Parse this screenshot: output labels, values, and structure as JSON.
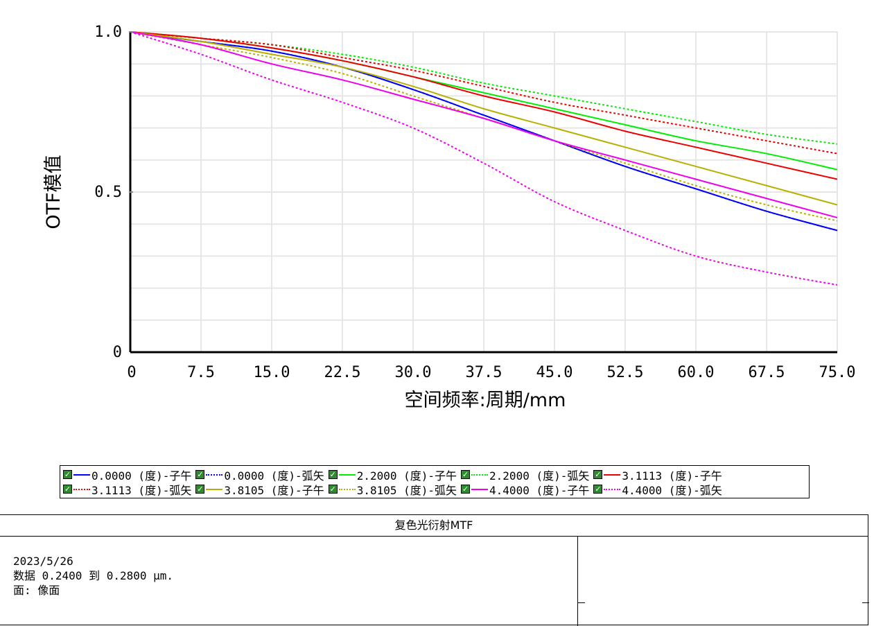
{
  "chart_data": {
    "type": "line",
    "xlabel": "空间频率:周期/mm",
    "ylabel": "OTF模值",
    "xlim": [
      0,
      75
    ],
    "ylim": [
      0,
      1
    ],
    "x_ticks": [
      "0",
      "7.5",
      "15.0",
      "22.5",
      "30.0",
      "37.5",
      "45.0",
      "52.5",
      "60.0",
      "67.5",
      "75.0"
    ],
    "y_ticks": [
      "0",
      "0.5",
      "1.0"
    ],
    "grid": true,
    "x": [
      0,
      7.5,
      15,
      22.5,
      30,
      37.5,
      45,
      52.5,
      60,
      67.5,
      75
    ],
    "series": [
      {
        "name": "0.0000 (度)-子午",
        "color": "#0000ff",
        "style": "solid",
        "values": [
          1.0,
          0.97,
          0.94,
          0.89,
          0.82,
          0.74,
          0.66,
          0.58,
          0.51,
          0.44,
          0.38
        ]
      },
      {
        "name": "0.0000 (度)-弧矢",
        "color": "#0000ff",
        "style": "dotted",
        "values": [
          1.0,
          0.97,
          0.94,
          0.89,
          0.82,
          0.74,
          0.66,
          0.58,
          0.51,
          0.44,
          0.38
        ]
      },
      {
        "name": "2.2000 (度)-子午",
        "color": "#00ee00",
        "style": "solid",
        "values": [
          1.0,
          0.98,
          0.95,
          0.91,
          0.86,
          0.81,
          0.76,
          0.71,
          0.66,
          0.62,
          0.57
        ]
      },
      {
        "name": "2.2000 (度)-弧矢",
        "color": "#00ee00",
        "style": "dotted",
        "values": [
          1.0,
          0.98,
          0.96,
          0.93,
          0.89,
          0.84,
          0.8,
          0.76,
          0.72,
          0.68,
          0.65
        ]
      },
      {
        "name": "3.1113 (度)-子午",
        "color": "#ee0000",
        "style": "solid",
        "values": [
          1.0,
          0.98,
          0.95,
          0.91,
          0.86,
          0.8,
          0.75,
          0.69,
          0.64,
          0.59,
          0.54
        ]
      },
      {
        "name": "3.1113 (度)-弧矢",
        "color": "#ee0000",
        "style": "dotted",
        "values": [
          1.0,
          0.98,
          0.96,
          0.92,
          0.88,
          0.83,
          0.78,
          0.74,
          0.7,
          0.66,
          0.62
        ]
      },
      {
        "name": "3.8105 (度)-子午",
        "color": "#b8b000",
        "style": "solid",
        "values": [
          1.0,
          0.97,
          0.93,
          0.89,
          0.83,
          0.76,
          0.7,
          0.64,
          0.58,
          0.52,
          0.46
        ]
      },
      {
        "name": "3.8105 (度)-弧矢",
        "color": "#b8b000",
        "style": "dotted",
        "values": [
          1.0,
          0.96,
          0.92,
          0.87,
          0.8,
          0.73,
          0.66,
          0.59,
          0.52,
          0.46,
          0.41
        ]
      },
      {
        "name": "4.4000 (度)-子午",
        "color": "#ee00ee",
        "style": "solid",
        "values": [
          1.0,
          0.96,
          0.9,
          0.85,
          0.79,
          0.73,
          0.66,
          0.6,
          0.54,
          0.48,
          0.42
        ]
      },
      {
        "name": "4.4000 (度)-弧矢",
        "color": "#ee00ee",
        "style": "dotted",
        "values": [
          1.0,
          0.93,
          0.85,
          0.78,
          0.7,
          0.59,
          0.47,
          0.38,
          0.3,
          0.25,
          0.21
        ]
      }
    ]
  },
  "info": {
    "title": "复色光衍射MTF",
    "date": "2023/5/26",
    "range": "数据 0.2400 到 0.2800 µm.",
    "surface": "面: 像面"
  }
}
